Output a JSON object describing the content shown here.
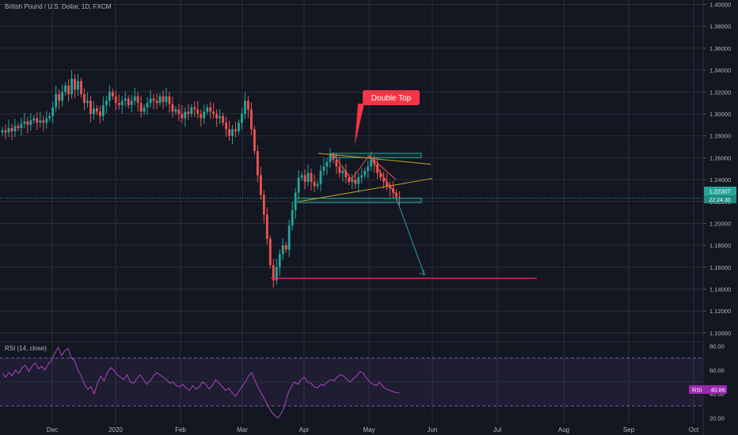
{
  "header": {
    "symbol_title": "British Pound / U.S. Dollar, 1D, FXCM"
  },
  "colors": {
    "background": "#131722",
    "grid": "#2a2e39",
    "text": "#b2b5be",
    "bull": "#26a69a",
    "bear": "#ef5350",
    "rsi_line": "#ab47bc",
    "rsi_band": "#7e57c2",
    "annotation": "#f23645",
    "box": "#26a69a",
    "trendline": "#c9a227",
    "target_line": "#e91e63"
  },
  "annotations": {
    "pattern_label": "Double Top",
    "price_tag": "1.22307",
    "countdown_tag": "22:24:30",
    "rsi_tag_label": "RSI",
    "rsi_tag_value": "40.86"
  },
  "rsi_panel": {
    "title": "RSI (14, close)"
  },
  "chart_data": [
    {
      "type": "candlestick",
      "title": "British Pound / U.S. Dollar, 1D, FXCM",
      "x_labels": [
        "Dec",
        "2020",
        "Feb",
        "Mar",
        "Apr",
        "May",
        "Jun",
        "Jul",
        "Aug",
        "Sep",
        "Oct"
      ],
      "y_ticks": [
        "1.40000",
        "1.38000",
        "1.36000",
        "1.34000",
        "1.32000",
        "1.30000",
        "1.28000",
        "1.26000",
        "1.24000",
        "1.22000",
        "1.20000",
        "1.18000",
        "1.16000",
        "1.14000",
        "1.12000",
        "1.10000"
      ],
      "ylim": [
        1.092,
        1.404
      ],
      "last_price": 1.22307,
      "close_series": [
        1.285,
        1.283,
        1.287,
        1.284,
        1.289,
        1.287,
        1.291,
        1.293,
        1.29,
        1.294,
        1.296,
        1.292,
        1.294,
        1.292,
        1.296,
        1.298,
        1.306,
        1.318,
        1.312,
        1.32,
        1.326,
        1.318,
        1.332,
        1.322,
        1.33,
        1.318,
        1.31,
        1.312,
        1.3,
        1.305,
        1.302,
        1.298,
        1.308,
        1.312,
        1.32,
        1.316,
        1.31,
        1.308,
        1.312,
        1.314,
        1.308,
        1.312,
        1.316,
        1.31,
        1.302,
        1.306,
        1.31,
        1.314,
        1.312,
        1.31,
        1.316,
        1.311,
        1.316,
        1.309,
        1.302,
        1.304,
        1.3,
        1.296,
        1.302,
        1.3,
        1.306,
        1.304,
        1.3,
        1.296,
        1.302,
        1.306,
        1.302,
        1.3,
        1.296,
        1.298,
        1.292,
        1.286,
        1.28,
        1.286,
        1.284,
        1.292,
        1.3,
        1.312,
        1.304,
        1.286,
        1.266,
        1.244,
        1.226,
        1.208,
        1.186,
        1.162,
        1.148,
        1.16,
        1.172,
        1.18,
        1.176,
        1.198,
        1.212,
        1.228,
        1.242,
        1.244,
        1.238,
        1.246,
        1.238,
        1.234,
        1.236,
        1.248,
        1.252,
        1.256,
        1.262,
        1.258,
        1.252,
        1.246,
        1.248,
        1.242,
        1.238,
        1.24,
        1.236,
        1.242,
        1.244,
        1.248,
        1.252,
        1.258,
        1.254,
        1.246,
        1.242,
        1.238,
        1.234,
        1.232,
        1.228,
        1.224,
        1.223
      ],
      "drawings": {
        "resistance_zone": [
          1.26,
          1.264
        ],
        "support_zone": [
          1.219,
          1.223
        ],
        "neckline": [
          1.22,
          1.241
        ],
        "upper_trendline": [
          1.264,
          1.254
        ],
        "projection_target": 1.153,
        "horizontal_target_line": 1.15,
        "callout_label": "Double Top"
      }
    },
    {
      "type": "line",
      "title": "RSI (14, close)",
      "y_ticks": [
        "80.00",
        "60.00",
        "40.00",
        "20.00"
      ],
      "ylim": [
        15,
        83
      ],
      "band": [
        30,
        70
      ],
      "last_value": 40.86,
      "values": [
        57,
        54,
        58,
        55,
        60,
        57,
        62,
        64,
        59,
        63,
        66,
        61,
        63,
        60,
        65,
        68,
        74,
        79,
        72,
        76,
        78,
        70,
        68,
        60,
        55,
        48,
        44,
        46,
        40,
        49,
        55,
        51,
        58,
        62,
        60,
        56,
        54,
        52,
        56,
        50,
        49,
        53,
        56,
        52,
        48,
        51,
        55,
        58,
        56,
        54,
        52,
        49,
        50,
        47,
        46,
        48,
        45,
        43,
        47,
        44,
        46,
        50,
        48,
        44,
        47,
        52,
        49,
        46,
        43,
        45,
        41,
        38,
        42,
        46,
        50,
        55,
        58,
        51,
        45,
        40,
        35,
        30,
        25,
        22,
        20,
        24,
        30,
        40,
        46,
        50,
        48,
        52,
        54,
        50,
        49,
        46,
        45,
        48,
        47,
        50,
        52,
        51,
        54,
        56,
        55,
        52,
        50,
        53,
        55,
        59,
        57,
        53,
        50,
        48,
        47,
        50,
        46,
        44,
        43,
        42,
        41,
        40.86
      ]
    }
  ]
}
